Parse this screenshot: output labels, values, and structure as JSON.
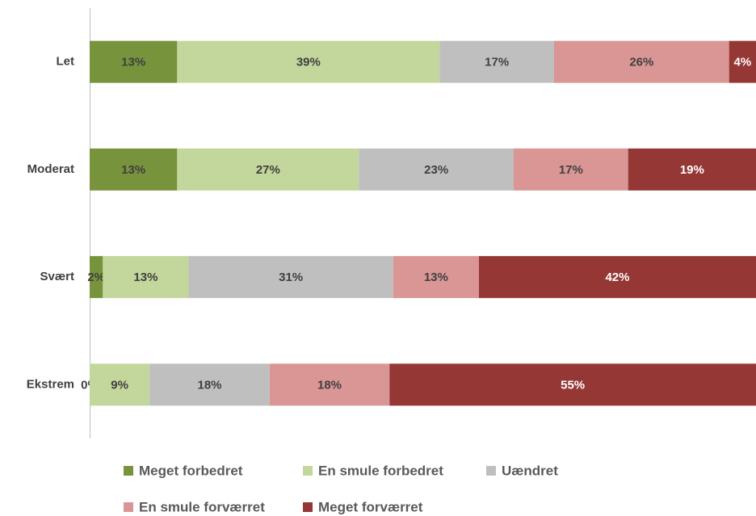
{
  "chart_data": {
    "type": "bar",
    "orientation": "horizontal",
    "stacked": true,
    "categories": [
      "Let",
      "Moderat",
      "Svært",
      "Ekstrem"
    ],
    "series": [
      {
        "name": "Meget forbedret",
        "color": "#77933c",
        "label_color": "#404040",
        "values": [
          13,
          13,
          2,
          0
        ],
        "value_labels": [
          "13%",
          "13%",
          "2%",
          "0%"
        ]
      },
      {
        "name": "En smule forbedret",
        "color": "#c3d69b",
        "label_color": "#404040",
        "values": [
          39,
          27,
          13,
          9
        ],
        "value_labels": [
          "39%",
          "27%",
          "13%",
          "9%"
        ]
      },
      {
        "name": "Uændret",
        "color": "#bfbfbf",
        "label_color": "#404040",
        "values": [
          17,
          23,
          31,
          18
        ],
        "value_labels": [
          "17%",
          "23%",
          "31%",
          "18%"
        ]
      },
      {
        "name": "En smule forværret",
        "color": "#d99694",
        "label_color": "#404040",
        "values": [
          26,
          17,
          13,
          18
        ],
        "value_labels": [
          "26%",
          "17%",
          "13%",
          "18%"
        ]
      },
      {
        "name": "Meget forværret",
        "color": "#953735",
        "label_color": "#ffffff",
        "values": [
          4,
          19,
          42,
          55
        ],
        "value_labels": [
          "4%",
          "19%",
          "42%",
          "55%"
        ]
      }
    ]
  }
}
